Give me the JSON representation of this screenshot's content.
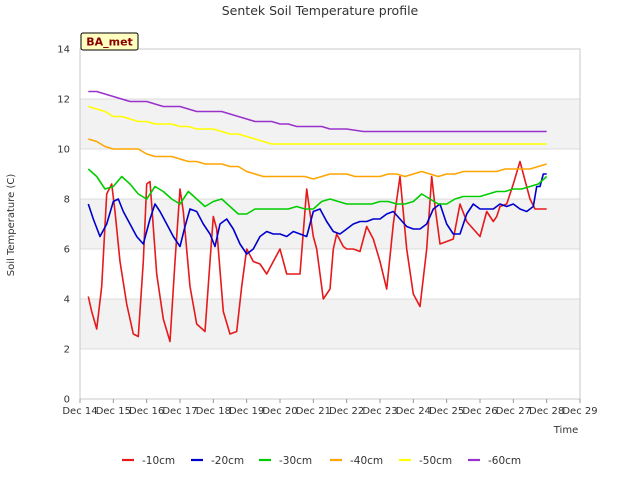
{
  "chart_data": {
    "type": "line",
    "title": "Sentek Soil Temperature profile",
    "xlabel": "Time",
    "ylabel": "Soil Temperature (C)",
    "badge": "BA_met",
    "xlim": [
      0,
      15
    ],
    "ylim": [
      0,
      14
    ],
    "yticks": [
      0,
      2,
      4,
      6,
      8,
      10,
      12,
      14
    ],
    "xticks": [
      "Dec 14",
      "Dec 15",
      "Dec 16",
      "Dec 17",
      "Dec 18",
      "Dec 19",
      "Dec 20",
      "Dec 21",
      "Dec 22",
      "Dec 23",
      "Dec 24",
      "Dec 25",
      "Dec 26",
      "Dec 27",
      "Dec 28",
      "Dec 29"
    ],
    "grid": true,
    "legend_position": "bottom",
    "series": [
      {
        "name": "-10cm",
        "color": "#e41a1c",
        "x": [
          0.25,
          0.35,
          0.5,
          0.65,
          0.8,
          0.95,
          1.05,
          1.2,
          1.4,
          1.6,
          1.75,
          1.9,
          2.0,
          2.1,
          2.3,
          2.5,
          2.7,
          2.85,
          3.0,
          3.1,
          3.3,
          3.5,
          3.75,
          3.9,
          4.0,
          4.1,
          4.3,
          4.5,
          4.7,
          4.85,
          5.0,
          5.2,
          5.4,
          5.6,
          5.8,
          6.0,
          6.2,
          6.4,
          6.6,
          6.8,
          7.0,
          7.1,
          7.3,
          7.5,
          7.6,
          7.7,
          7.9,
          8.0,
          8.2,
          8.4,
          8.6,
          8.8,
          9.0,
          9.2,
          9.4,
          9.6,
          9.8,
          10.0,
          10.2,
          10.4,
          10.55,
          10.65,
          10.8,
          11.0,
          11.2,
          11.4,
          11.6,
          11.8,
          12.0,
          12.2,
          12.4,
          12.5,
          12.6,
          12.8,
          13.0,
          13.2,
          13.3,
          13.5,
          13.65,
          13.75,
          13.85,
          14.0
        ],
        "y": [
          4.1,
          3.5,
          2.8,
          4.5,
          8.2,
          8.6,
          7.5,
          5.5,
          3.8,
          2.6,
          2.5,
          5.5,
          8.6,
          8.7,
          5.0,
          3.2,
          2.3,
          5.5,
          8.4,
          7.5,
          4.5,
          3.0,
          2.7,
          5.5,
          7.3,
          6.8,
          3.5,
          2.6,
          2.7,
          4.5,
          6.0,
          5.5,
          5.4,
          5.0,
          5.5,
          6.0,
          5.0,
          5.0,
          5.0,
          8.4,
          6.5,
          6.0,
          4.0,
          4.4,
          6.0,
          6.6,
          6.1,
          6.0,
          6.0,
          5.9,
          6.9,
          6.4,
          5.5,
          4.4,
          7.0,
          8.9,
          6.0,
          4.2,
          3.7,
          6.0,
          8.9,
          7.7,
          6.2,
          6.3,
          6.4,
          7.8,
          7.1,
          6.8,
          6.5,
          7.5,
          7.1,
          7.3,
          7.7,
          7.8,
          8.6,
          9.5,
          9.0,
          8.0,
          7.6,
          7.6,
          7.6,
          7.6
        ]
      },
      {
        "name": "-20cm",
        "color": "#0000cd",
        "x": [
          0.25,
          0.4,
          0.6,
          0.8,
          1.0,
          1.15,
          1.3,
          1.5,
          1.7,
          1.9,
          2.1,
          2.25,
          2.4,
          2.6,
          2.8,
          3.0,
          3.15,
          3.3,
          3.5,
          3.7,
          3.9,
          4.05,
          4.2,
          4.4,
          4.6,
          4.8,
          5.0,
          5.2,
          5.4,
          5.6,
          5.8,
          6.0,
          6.2,
          6.4,
          6.6,
          6.8,
          7.0,
          7.2,
          7.4,
          7.6,
          7.8,
          8.0,
          8.2,
          8.4,
          8.6,
          8.8,
          9.0,
          9.2,
          9.4,
          9.6,
          9.8,
          10.0,
          10.2,
          10.4,
          10.6,
          10.8,
          11.0,
          11.2,
          11.4,
          11.6,
          11.8,
          12.0,
          12.2,
          12.4,
          12.6,
          12.8,
          13.0,
          13.2,
          13.4,
          13.6,
          13.7,
          13.8,
          13.9,
          14.0
        ],
        "y": [
          7.8,
          7.2,
          6.5,
          7.0,
          7.9,
          8.0,
          7.5,
          7.0,
          6.5,
          6.2,
          7.2,
          7.8,
          7.5,
          7.0,
          6.5,
          6.1,
          6.9,
          7.6,
          7.5,
          7.0,
          6.6,
          6.1,
          7.0,
          7.2,
          6.8,
          6.2,
          5.8,
          6.0,
          6.5,
          6.7,
          6.6,
          6.6,
          6.5,
          6.7,
          6.6,
          6.5,
          7.5,
          7.6,
          7.1,
          6.7,
          6.6,
          6.8,
          7.0,
          7.1,
          7.1,
          7.2,
          7.2,
          7.4,
          7.5,
          7.2,
          6.9,
          6.8,
          6.8,
          7.0,
          7.6,
          7.8,
          7.0,
          6.6,
          6.6,
          7.4,
          7.8,
          7.6,
          7.6,
          7.6,
          7.8,
          7.7,
          7.8,
          7.6,
          7.5,
          7.7,
          8.5,
          8.5,
          9.0,
          9.0
        ]
      },
      {
        "name": "-30cm",
        "color": "#00cd00",
        "x": [
          0.25,
          0.5,
          0.75,
          1.0,
          1.25,
          1.5,
          1.75,
          2.0,
          2.25,
          2.5,
          2.75,
          3.0,
          3.25,
          3.5,
          3.75,
          4.0,
          4.25,
          4.5,
          4.75,
          5.0,
          5.25,
          5.5,
          5.75,
          6.0,
          6.25,
          6.5,
          6.75,
          7.0,
          7.25,
          7.5,
          7.75,
          8.0,
          8.25,
          8.5,
          8.75,
          9.0,
          9.25,
          9.5,
          9.75,
          10.0,
          10.25,
          10.5,
          10.75,
          11.0,
          11.25,
          11.5,
          11.75,
          12.0,
          12.25,
          12.5,
          12.75,
          13.0,
          13.25,
          13.5,
          13.75,
          14.0
        ],
        "y": [
          9.2,
          8.9,
          8.4,
          8.5,
          8.9,
          8.6,
          8.2,
          8.0,
          8.5,
          8.3,
          8.0,
          7.8,
          8.3,
          8.0,
          7.7,
          7.9,
          8.0,
          7.7,
          7.4,
          7.4,
          7.6,
          7.6,
          7.6,
          7.6,
          7.6,
          7.7,
          7.6,
          7.6,
          7.9,
          8.0,
          7.9,
          7.8,
          7.8,
          7.8,
          7.8,
          7.9,
          7.9,
          7.8,
          7.8,
          7.9,
          8.2,
          8.0,
          7.8,
          7.8,
          8.0,
          8.1,
          8.1,
          8.1,
          8.2,
          8.3,
          8.3,
          8.4,
          8.4,
          8.5,
          8.6,
          8.9
        ]
      },
      {
        "name": "-40cm",
        "color": "#ffa500",
        "x": [
          0.25,
          0.5,
          0.75,
          1.0,
          1.25,
          1.5,
          1.75,
          2.0,
          2.25,
          2.5,
          2.75,
          3.0,
          3.25,
          3.5,
          3.75,
          4.0,
          4.25,
          4.5,
          4.75,
          5.0,
          5.25,
          5.5,
          5.75,
          6.0,
          6.25,
          6.5,
          6.75,
          7.0,
          7.25,
          7.5,
          7.75,
          8.0,
          8.25,
          8.5,
          8.75,
          9.0,
          9.25,
          9.5,
          9.75,
          10.0,
          10.25,
          10.5,
          10.75,
          11.0,
          11.25,
          11.5,
          11.75,
          12.0,
          12.25,
          12.5,
          12.75,
          13.0,
          13.25,
          13.5,
          13.75,
          14.0
        ],
        "y": [
          10.4,
          10.3,
          10.1,
          10.0,
          10.0,
          10.0,
          10.0,
          9.8,
          9.7,
          9.7,
          9.7,
          9.6,
          9.5,
          9.5,
          9.4,
          9.4,
          9.4,
          9.3,
          9.3,
          9.1,
          9.0,
          8.9,
          8.9,
          8.9,
          8.9,
          8.9,
          8.9,
          8.8,
          8.9,
          9.0,
          9.0,
          9.0,
          8.9,
          8.9,
          8.9,
          8.9,
          9.0,
          9.0,
          8.9,
          9.0,
          9.1,
          9.0,
          8.9,
          9.0,
          9.0,
          9.1,
          9.1,
          9.1,
          9.1,
          9.1,
          9.2,
          9.2,
          9.2,
          9.2,
          9.3,
          9.4
        ]
      },
      {
        "name": "-50cm",
        "color": "#ffff00",
        "x": [
          0.25,
          0.5,
          0.75,
          1.0,
          1.25,
          1.5,
          1.75,
          2.0,
          2.25,
          2.5,
          2.75,
          3.0,
          3.25,
          3.5,
          3.75,
          4.0,
          4.25,
          4.5,
          4.75,
          5.0,
          5.25,
          5.5,
          5.75,
          6.0,
          6.5,
          7.0,
          7.5,
          8.0,
          8.5,
          9.0,
          9.5,
          10.0,
          10.5,
          11.0,
          11.5,
          12.0,
          12.5,
          13.0,
          13.5,
          14.0
        ],
        "y": [
          11.7,
          11.6,
          11.5,
          11.3,
          11.3,
          11.2,
          11.1,
          11.1,
          11.0,
          11.0,
          11.0,
          10.9,
          10.9,
          10.8,
          10.8,
          10.8,
          10.7,
          10.6,
          10.6,
          10.5,
          10.4,
          10.3,
          10.2,
          10.2,
          10.2,
          10.2,
          10.2,
          10.2,
          10.2,
          10.2,
          10.2,
          10.2,
          10.2,
          10.2,
          10.2,
          10.2,
          10.2,
          10.2,
          10.2,
          10.2
        ]
      },
      {
        "name": "-60cm",
        "color": "#9932cc",
        "x": [
          0.25,
          0.5,
          0.75,
          1.0,
          1.25,
          1.5,
          1.75,
          2.0,
          2.25,
          2.5,
          2.75,
          3.0,
          3.25,
          3.5,
          3.75,
          4.0,
          4.25,
          4.5,
          4.75,
          5.0,
          5.25,
          5.5,
          5.75,
          6.0,
          6.25,
          6.5,
          6.75,
          7.0,
          7.25,
          7.5,
          7.75,
          8.0,
          8.5,
          9.0,
          9.5,
          10.0,
          10.5,
          11.0,
          11.5,
          12.0,
          12.5,
          13.0,
          13.5,
          14.0
        ],
        "y": [
          12.3,
          12.3,
          12.2,
          12.1,
          12.0,
          11.9,
          11.9,
          11.9,
          11.8,
          11.7,
          11.7,
          11.7,
          11.6,
          11.5,
          11.5,
          11.5,
          11.5,
          11.4,
          11.3,
          11.2,
          11.1,
          11.1,
          11.1,
          11.0,
          11.0,
          10.9,
          10.9,
          10.9,
          10.9,
          10.8,
          10.8,
          10.8,
          10.7,
          10.7,
          10.7,
          10.7,
          10.7,
          10.7,
          10.7,
          10.7,
          10.7,
          10.7,
          10.7,
          10.7
        ]
      }
    ]
  }
}
